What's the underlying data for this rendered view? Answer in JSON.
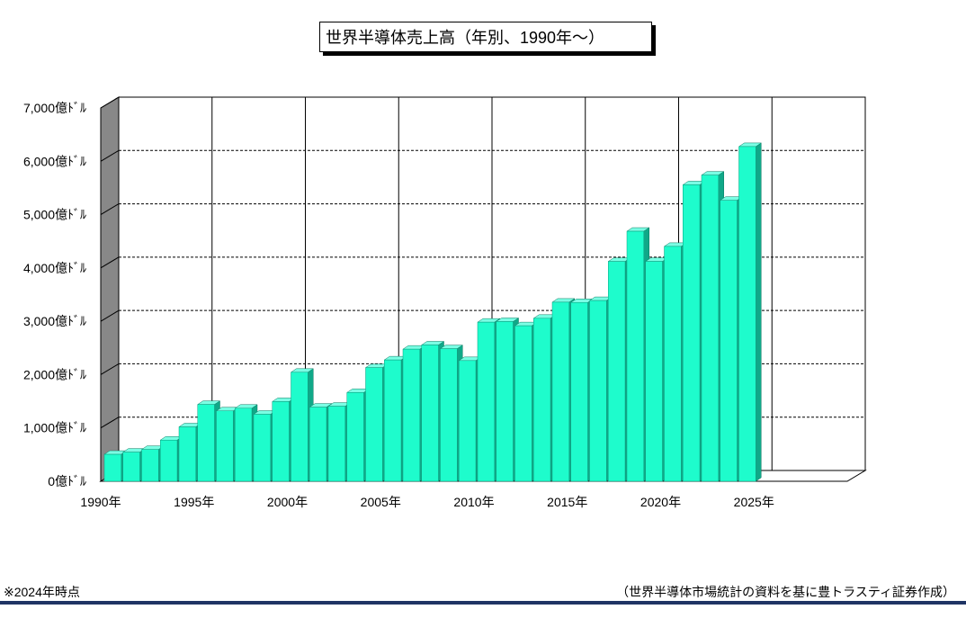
{
  "chart_data": {
    "type": "bar",
    "title": "世界半導体売上高（年別、1990年～）",
    "x": [
      1990,
      1991,
      1992,
      1993,
      1994,
      1995,
      1996,
      1997,
      1998,
      1999,
      2000,
      2001,
      2002,
      2003,
      2004,
      2005,
      2006,
      2007,
      2008,
      2009,
      2010,
      2011,
      2012,
      2013,
      2014,
      2015,
      2016,
      2017,
      2018,
      2019,
      2020,
      2021,
      2022,
      2023,
      2024
    ],
    "values": [
      505,
      546,
      596,
      772,
      1020,
      1440,
      1320,
      1370,
      1256,
      1494,
      2044,
      1390,
      1407,
      1664,
      2131,
      2275,
      2477,
      2556,
      2486,
      2263,
      2983,
      2995,
      2916,
      3056,
      3358,
      3352,
      3389,
      4122,
      4688,
      4123,
      4404,
      5559,
      5741,
      5268,
      6276
    ],
    "ylim": [
      0,
      7000
    ],
    "xlim": [
      1990,
      2030
    ],
    "y_ticks": [
      "0億ﾄﾞﾙ",
      "1,000億ﾄﾞﾙ",
      "2,000億ﾄﾞﾙ",
      "3,000億ﾄﾞﾙ",
      "4,000億ﾄﾞﾙ",
      "5,000億ﾄﾞﾙ",
      "6,000億ﾄﾞﾙ",
      "7,000億ﾄﾞﾙ"
    ],
    "x_ticks": [
      "1990年",
      "1995年",
      "2000年",
      "2005年",
      "2010年",
      "2015年",
      "2020年",
      "2025年"
    ],
    "grid": true,
    "colors": {
      "bar_front": "#1efccc",
      "bar_side": "#10a888",
      "bar_top": "#7affe4",
      "wall": "#888888",
      "grid": "#000000"
    }
  },
  "footnote": "※2024年時点",
  "source": "（世界半導体市場統計の資料を基に豊トラスティ証券作成）"
}
